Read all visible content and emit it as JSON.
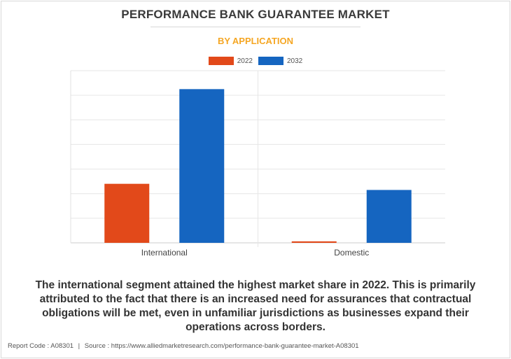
{
  "header": {
    "title": "PERFORMANCE BANK GUARANTEE MARKET",
    "subtitle": "BY APPLICATION"
  },
  "colors": {
    "series_2022": "#e2491a",
    "series_2032": "#1565c0",
    "subtitle": "#f5a623",
    "grid": "#e6e6e6"
  },
  "chart_data": {
    "type": "bar",
    "title": "",
    "xlabel": "",
    "ylabel": "",
    "categories": [
      "International",
      "Domestic"
    ],
    "series": [
      {
        "name": "2022",
        "values": [
          2.4,
          0.06
        ]
      },
      {
        "name": "2032",
        "values": [
          6.25,
          2.15
        ]
      }
    ],
    "ylim": [
      0,
      7
    ],
    "grid": true,
    "y_tick_labels_shown": false,
    "legend_position": "top-center"
  },
  "caption": "The international segment attained the highest market share in 2022. This is primarily attributed to the fact that there is an increased need for assurances that contractual obligations will be met, even in unfamiliar jurisdictions as businesses expand their operations across borders.",
  "footer": {
    "report_code": "Report Code : A08301",
    "separator": "|",
    "source": "Source : https://www.alliedmarketresearch.com/performance-bank-guarantee-market-A08301"
  }
}
